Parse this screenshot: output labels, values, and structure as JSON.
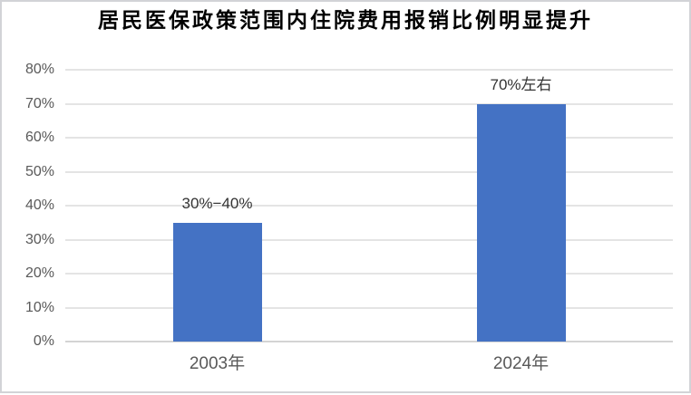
{
  "title": "居民医保政策范围内住院费用报销比例明显提升",
  "chart_data": {
    "type": "bar",
    "title": "居民医保政策范围内住院费用报销比例明显提升",
    "categories": [
      "2003年",
      "2024年"
    ],
    "values": [
      35,
      70
    ],
    "data_labels": [
      "30%−40%",
      "70%左右"
    ],
    "xlabel": "",
    "ylabel": "",
    "ylim": [
      0,
      80
    ],
    "ytick_step": 10,
    "ytick_labels": [
      "0%",
      "10%",
      "20%",
      "30%",
      "40%",
      "50%",
      "60%",
      "70%",
      "80%"
    ],
    "grid": true,
    "legend": false,
    "bar_color": "#4472C4",
    "gridline_color": "#e4e4e4",
    "baseline_color": "#d4d4d4",
    "axis_label_color": "#595959",
    "data_label_color": "#333333",
    "title_color": "#000000"
  }
}
